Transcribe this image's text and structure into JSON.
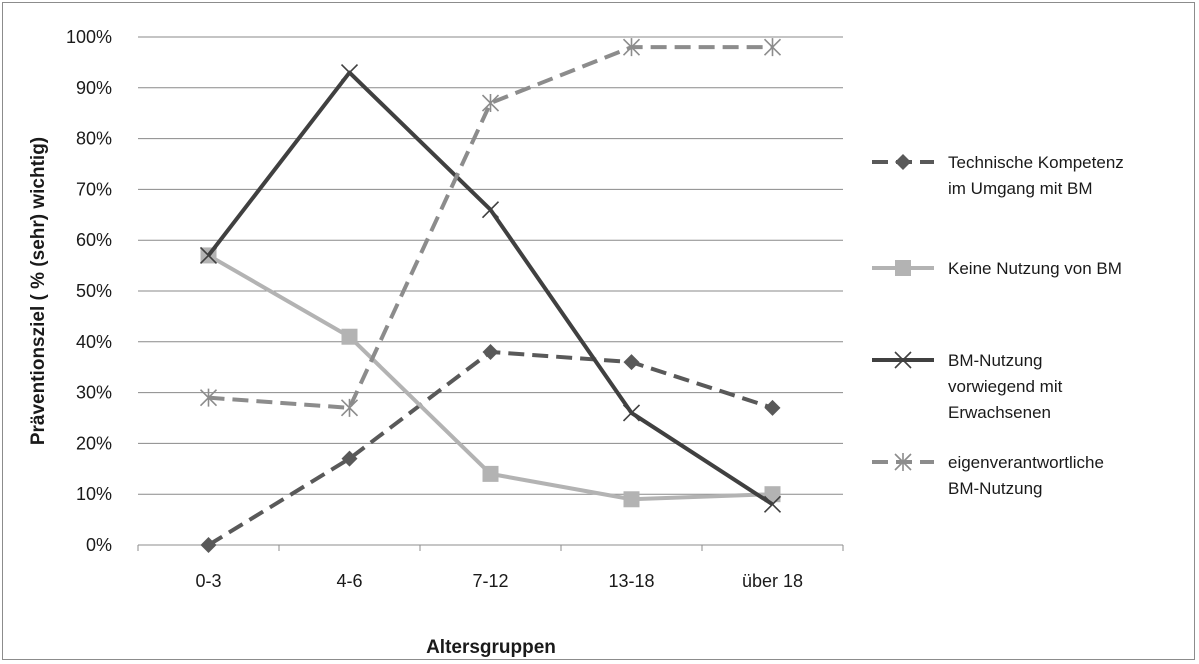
{
  "chart_data": {
    "type": "line",
    "title": "",
    "xlabel": "Altersgruppen",
    "ylabel": "Präventionsziel  ( % (sehr) wichtig)",
    "categories": [
      "0-3",
      "4-6",
      "7-12",
      "13-18",
      "über 18"
    ],
    "ylim": [
      0,
      100
    ],
    "yticks": [
      "0%",
      "10%",
      "20%",
      "30%",
      "40%",
      "50%",
      "60%",
      "70%",
      "80%",
      "90%",
      "100%"
    ],
    "grid": true,
    "legend_position": "right",
    "series": [
      {
        "name": "Technische Kompetenz im Umgang mit BM",
        "legend_lines": [
          "Technische Kompetenz",
          "im Umgang mit BM"
        ],
        "values": [
          0,
          17,
          38,
          36,
          27
        ],
        "color": "#595959",
        "dash": true,
        "marker": "diamond"
      },
      {
        "name": "Keine Nutzung von BM",
        "legend_lines": [
          "Keine Nutzung von BM"
        ],
        "values": [
          57,
          41,
          14,
          9,
          10
        ],
        "color": "#b3b3b3",
        "dash": false,
        "marker": "square"
      },
      {
        "name": "BM-Nutzung vorwiegend mit Erwachsenen",
        "legend_lines": [
          "BM-Nutzung",
          "vorwiegend mit",
          "Erwachsenen"
        ],
        "values": [
          57,
          93,
          66,
          26,
          8
        ],
        "color": "#404040",
        "dash": false,
        "marker": "x"
      },
      {
        "name": "eigenverantwortliche BM-Nutzung",
        "legend_lines": [
          "eigenverantwortliche",
          "BM-Nutzung"
        ],
        "values": [
          29,
          27,
          87,
          98,
          98
        ],
        "color": "#8c8c8c",
        "dash": true,
        "marker": "star"
      }
    ]
  }
}
